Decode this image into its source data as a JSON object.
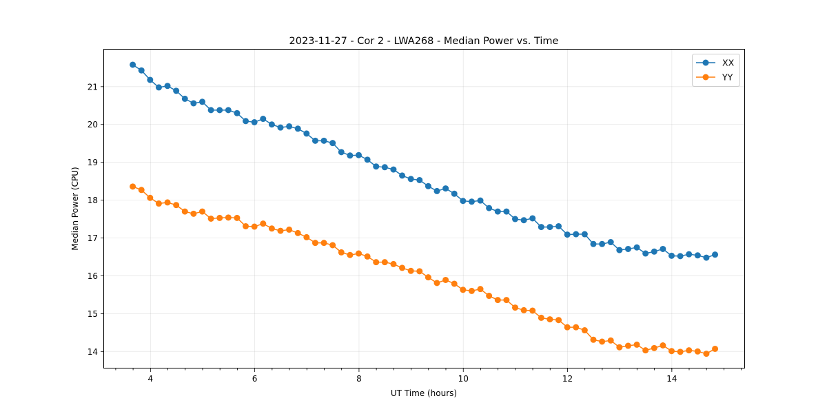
{
  "chart_data": {
    "type": "line",
    "title": "2023-11-27 - Cor 2 - LWA268 - Median Power vs. Time",
    "xlabel": "UT Time (hours)",
    "ylabel": "Median Power (CPU)",
    "xlim": [
      3.11,
      15.39
    ],
    "ylim": [
      13.55,
      21.98
    ],
    "x_major_ticks": [
      4,
      6,
      8,
      10,
      12,
      14
    ],
    "x_tick_labels": [
      "4",
      "6",
      "8",
      "10",
      "12",
      "14"
    ],
    "x_minor_step": 0.3333,
    "y_major_ticks": [
      14,
      15,
      16,
      17,
      18,
      19,
      20,
      21
    ],
    "y_tick_labels": [
      "14",
      "15",
      "16",
      "17",
      "18",
      "19",
      "20",
      "21"
    ],
    "grid": true,
    "legend_position": "top-right",
    "x_start": 3.66,
    "x_step": 0.1667,
    "series": [
      {
        "name": "XX",
        "color": "#1f77b4",
        "marker": "circle",
        "values": [
          21.58,
          21.43,
          21.18,
          20.98,
          21.02,
          20.89,
          20.68,
          20.56,
          20.6,
          20.38,
          20.38,
          20.38,
          20.3,
          20.09,
          20.06,
          20.15,
          20.0,
          19.92,
          19.95,
          19.89,
          19.76,
          19.57,
          19.57,
          19.51,
          19.27,
          19.18,
          19.19,
          19.07,
          18.89,
          18.87,
          18.81,
          18.65,
          18.56,
          18.53,
          18.37,
          18.24,
          18.31,
          18.17,
          17.98,
          17.96,
          17.99,
          17.79,
          17.7,
          17.7,
          17.5,
          17.47,
          17.52,
          17.29,
          17.29,
          17.31,
          17.09,
          17.1,
          17.1,
          16.84,
          16.84,
          16.89,
          16.68,
          16.71,
          16.75,
          16.59,
          16.64,
          16.71,
          16.53,
          16.52,
          16.57,
          16.54,
          16.48,
          16.56
        ]
      },
      {
        "name": "YY",
        "color": "#ff7f0e",
        "marker": "circle",
        "values": [
          18.36,
          18.27,
          18.06,
          17.91,
          17.94,
          17.87,
          17.7,
          17.64,
          17.7,
          17.51,
          17.53,
          17.54,
          17.53,
          17.31,
          17.3,
          17.38,
          17.25,
          17.19,
          17.22,
          17.13,
          17.02,
          16.87,
          16.87,
          16.81,
          16.62,
          16.55,
          16.59,
          16.51,
          16.36,
          16.36,
          16.31,
          16.21,
          16.13,
          16.12,
          15.96,
          15.81,
          15.89,
          15.79,
          15.63,
          15.6,
          15.65,
          15.47,
          15.36,
          15.36,
          15.16,
          15.09,
          15.08,
          14.89,
          14.85,
          14.83,
          14.64,
          14.64,
          14.56,
          14.31,
          14.26,
          14.29,
          14.11,
          14.15,
          14.18,
          14.03,
          14.09,
          14.16,
          14.01,
          13.99,
          14.03,
          14.0,
          13.94,
          14.07
        ]
      }
    ]
  }
}
